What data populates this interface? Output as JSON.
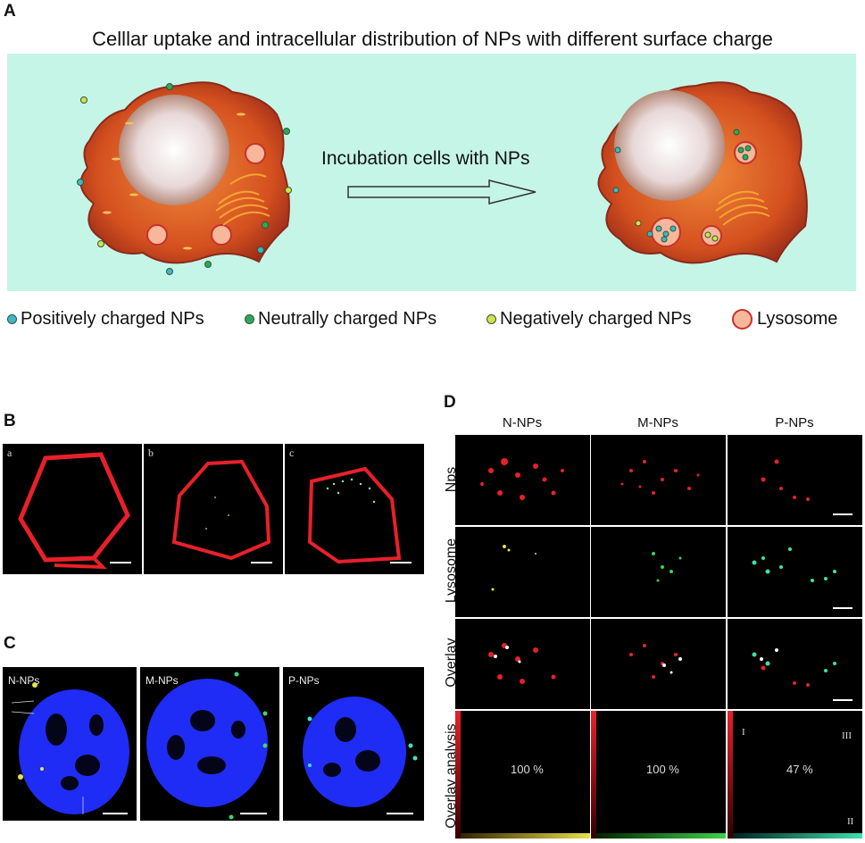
{
  "panel_a": {
    "letter": "A",
    "title": "Celllar uptake and intracellular distribution of NPs with different surface charge",
    "arrow_label": "Incubation cells with NPs",
    "legend": [
      {
        "label": "Positively charged NPs",
        "color": "#3fb7c9"
      },
      {
        "label": "Neutrally charged NPs",
        "color": "#2ea85a"
      },
      {
        "label": "Negatively charged NPs",
        "color": "#d6e04a"
      },
      {
        "label": "Lysosome",
        "color": "#f6b79a"
      }
    ]
  },
  "panel_b": {
    "letter": "B",
    "subpanels": [
      "a",
      "b",
      "c"
    ]
  },
  "panel_c": {
    "letter": "C",
    "subpanels": [
      "N-NPs",
      "M-NPs",
      "P-NPs"
    ]
  },
  "panel_d": {
    "letter": "D",
    "columns": [
      "N-NPs",
      "M-NPs",
      "P-NPs"
    ],
    "rows": [
      "Nps",
      "Lysosome",
      "Overlay",
      "Overlay analysis"
    ],
    "overlay_percent": [
      "100 %",
      "100 %",
      "47 %"
    ],
    "quadrants": [
      "I",
      "III",
      "II"
    ]
  },
  "colors": {
    "scheme_bg": "#c5f5e6",
    "membrane_red": "#e8202a",
    "nucleus_blue": "#1f2cf5"
  }
}
